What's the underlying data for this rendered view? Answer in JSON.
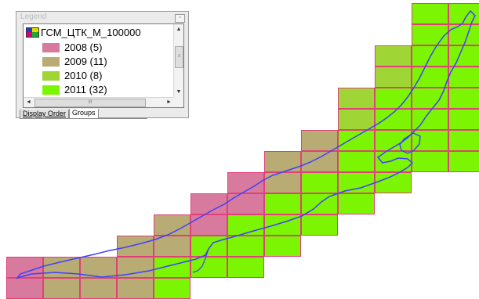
{
  "legend": {
    "title": "Legend",
    "layer_name": "ГСМ_ЦТК_М_100000",
    "classes": [
      {
        "label": "2008 (5)",
        "color": "#d87a9e"
      },
      {
        "label": "2009 (11)",
        "color": "#b8ab74"
      },
      {
        "label": "2010 (8)",
        "color": "#9fd636"
      },
      {
        "label": "2011 (32)",
        "color": "#7cf502"
      }
    ],
    "tabs": [
      {
        "label": "Display Order"
      },
      {
        "label": "Groups"
      }
    ]
  },
  "map": {
    "grid_border_color": "#e0407a",
    "shoreline_color": "#4040ff"
  }
}
